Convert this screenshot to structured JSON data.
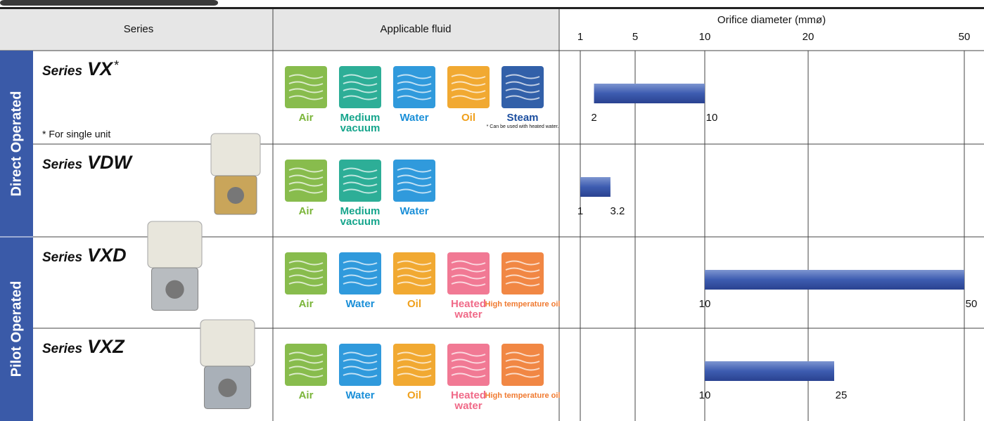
{
  "header": {
    "series": "Series",
    "fluid": "Applicable fluid",
    "orifice": "Orifice diameter (mmø)"
  },
  "axis": {
    "lim": [
      1,
      50
    ],
    "ticks": [
      1,
      5,
      10,
      20,
      50
    ]
  },
  "groups": [
    {
      "label": "Direct Operated",
      "rows": [
        0,
        1
      ]
    },
    {
      "label": "Pilot Operated",
      "rows": [
        2,
        3
      ]
    }
  ],
  "rows": [
    {
      "prefix": "Series",
      "model": "VX",
      "mark": "*",
      "note": "* For single unit",
      "fluids": [
        {
          "label": "Air",
          "color": "#7bb53a"
        },
        {
          "label": "Medium vacuum",
          "color": "#16a58c"
        },
        {
          "label": "Water",
          "color": "#1a8fd8"
        },
        {
          "label": "Oil",
          "color": "#f0a01c"
        },
        {
          "label": "Steam",
          "color": "#1c4fa0",
          "note": "* Can be used with heated water."
        }
      ],
      "range": [
        2,
        10
      ]
    },
    {
      "prefix": "Series",
      "model": "VDW",
      "fluids": [
        {
          "label": "Air",
          "color": "#7bb53a"
        },
        {
          "label": "Medium vacuum",
          "color": "#16a58c"
        },
        {
          "label": "Water",
          "color": "#1a8fd8"
        }
      ],
      "range": [
        1,
        3.2
      ]
    },
    {
      "prefix": "Series",
      "model": "VXD",
      "fluids": [
        {
          "label": "Air",
          "color": "#7bb53a"
        },
        {
          "label": "Water",
          "color": "#1a8fd8"
        },
        {
          "label": "Oil",
          "color": "#f0a01c"
        },
        {
          "label": "Heated water",
          "color": "#f06a88"
        },
        {
          "label": "High temperature oil",
          "color": "#f07a30"
        }
      ],
      "range": [
        10,
        50
      ]
    },
    {
      "prefix": "Series",
      "model": "VXZ",
      "fluids": [
        {
          "label": "Air",
          "color": "#7bb53a"
        },
        {
          "label": "Water",
          "color": "#1a8fd8"
        },
        {
          "label": "Oil",
          "color": "#f0a01c"
        },
        {
          "label": "Heated water",
          "color": "#f06a88"
        },
        {
          "label": "High temperature oil",
          "color": "#f07a30"
        }
      ],
      "range": [
        10,
        25
      ]
    }
  ]
}
